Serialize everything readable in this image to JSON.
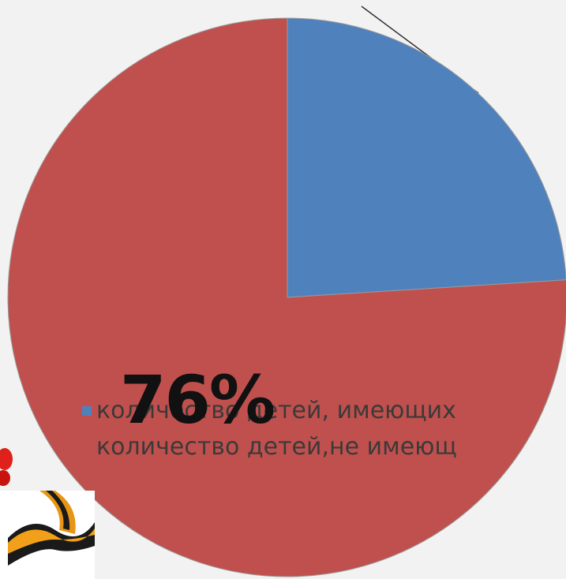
{
  "chart_data": {
    "type": "pie",
    "slices": [
      {
        "label": "количество детей, имеющих",
        "value": 24,
        "color": "#4f81bd"
      },
      {
        "label": "количество детей,не  имеющ",
        "value": 76,
        "color": "#c0504d"
      }
    ],
    "data_labels": [
      {
        "text": "76%"
      }
    ]
  }
}
